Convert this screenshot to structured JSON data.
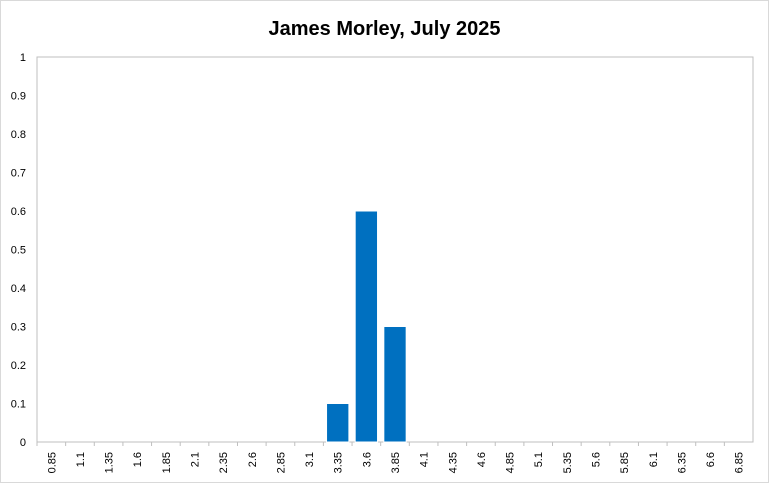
{
  "chart_data": {
    "type": "bar",
    "title": "James Morley, July 2025",
    "xlabel": "",
    "ylabel": "",
    "ylim": [
      0,
      1
    ],
    "yticks": [
      "0",
      "0.1",
      "0.2",
      "0.3",
      "0.4",
      "0.5",
      "0.6",
      "0.7",
      "0.8",
      "0.9",
      "1"
    ],
    "grid": false,
    "categories": [
      "0.85",
      "1.1",
      "1.35",
      "1.6",
      "1.85",
      "2.1",
      "2.35",
      "2.6",
      "2.85",
      "3.1",
      "3.35",
      "3.6",
      "3.85",
      "4.1",
      "4.35",
      "4.6",
      "4.85",
      "5.1",
      "5.35",
      "5.6",
      "5.85",
      "6.1",
      "6.35",
      "6.6",
      "6.85"
    ],
    "values": [
      0,
      0,
      0,
      0,
      0,
      0,
      0,
      0,
      0,
      0,
      0.1,
      0.6,
      0.3,
      0,
      0,
      0,
      0,
      0,
      0,
      0,
      0,
      0,
      0,
      0,
      0
    ],
    "bar_color": "#0070c0"
  }
}
